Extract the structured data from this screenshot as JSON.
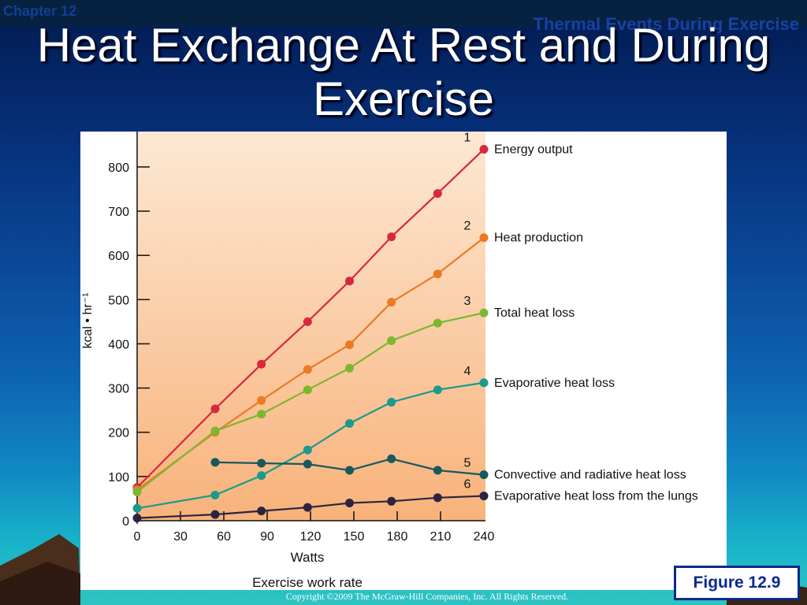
{
  "header": {
    "chapter": "Chapter 12",
    "section": "Thermal Events During Exercise"
  },
  "title": "Heat Exchange At Rest and During Exercise",
  "figure_label": "Figure 12.9",
  "copyright": "Copyright ©2009 The McGraw-Hill Companies, Inc. All Rights Reserved.",
  "colors": {
    "energy_output": "#d8283e",
    "heat_production": "#ec7a22",
    "total_heat_loss": "#7cb82f",
    "evaporative_heat_loss": "#1b9a8e",
    "convective_radiative": "#17595e",
    "evaporative_lungs": "#2b2440"
  },
  "chart_data": {
    "type": "line",
    "xlabel": "Watts",
    "xlabel2": "Exercise work rate",
    "ylabel": "kcal • hr⁻¹",
    "xlim": [
      0,
      240
    ],
    "ylim": [
      0,
      880
    ],
    "xticks": [
      "0",
      "30",
      "60",
      "90",
      "120",
      "150",
      "180",
      "210",
      "240"
    ],
    "yticks": [
      "0",
      "100",
      "200",
      "300",
      "400",
      "500",
      "600",
      "700",
      "800"
    ],
    "grid": false,
    "legend": "right",
    "series": [
      {
        "id": "1",
        "name": "Energy output",
        "color_key": "energy_output",
        "x": [
          0,
          54,
          86,
          118,
          147,
          176,
          208,
          240
        ],
        "y": [
          75,
          253,
          354,
          450,
          542,
          642,
          740,
          840
        ]
      },
      {
        "id": "2",
        "name": "Heat production",
        "color_key": "heat_production",
        "x": [
          0,
          54,
          86,
          118,
          147,
          176,
          208,
          240
        ],
        "y": [
          70,
          200,
          272,
          342,
          398,
          494,
          558,
          640
        ]
      },
      {
        "id": "3",
        "name": "Total heat loss",
        "color_key": "total_heat_loss",
        "x": [
          0,
          54,
          86,
          118,
          147,
          176,
          208,
          240
        ],
        "y": [
          65,
          203,
          241,
          296,
          345,
          407,
          447,
          470
        ]
      },
      {
        "id": "4",
        "name": "Evaporative heat loss",
        "color_key": "evaporative_heat_loss",
        "x": [
          0,
          54,
          86,
          118,
          147,
          176,
          208,
          240
        ],
        "y": [
          28,
          58,
          102,
          160,
          220,
          268,
          296,
          312
        ]
      },
      {
        "id": "5",
        "name": "Convective and radiative heat loss",
        "color_key": "convective_radiative",
        "x": [
          54,
          86,
          118,
          147,
          176,
          208,
          240
        ],
        "y": [
          132,
          130,
          128,
          114,
          140,
          114,
          104
        ]
      },
      {
        "id": "6",
        "name": "Evaporative heat loss from the lungs",
        "color_key": "evaporative_lungs",
        "x": [
          0,
          54,
          86,
          118,
          147,
          176,
          208,
          240
        ],
        "y": [
          6,
          14,
          22,
          30,
          40,
          44,
          52,
          56
        ]
      }
    ]
  }
}
